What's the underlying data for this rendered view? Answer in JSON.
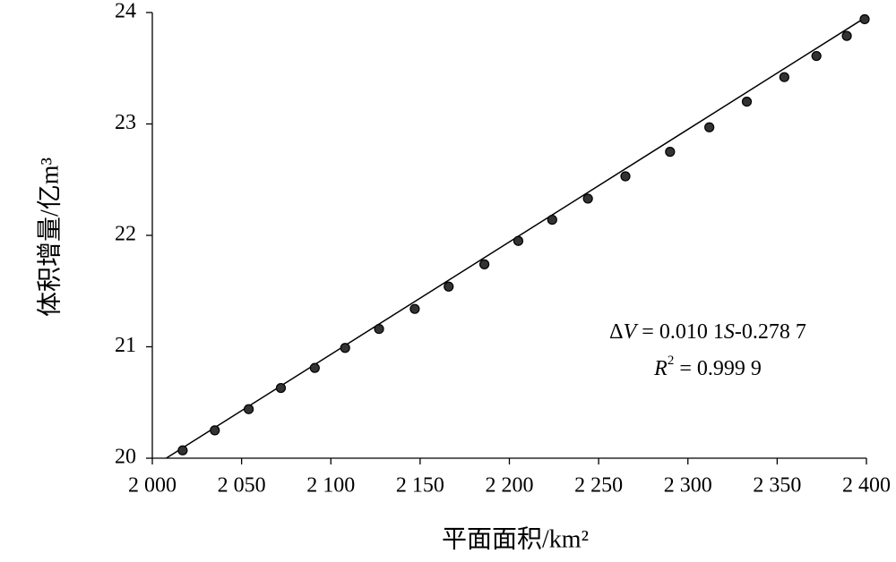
{
  "chart_data": {
    "type": "scatter",
    "x_label": "平面面积/km²",
    "y_label": "体积增量/亿m³",
    "equation": [
      "Δ",
      "V",
      " = 0.010 1",
      "S",
      "-0.278 7"
    ],
    "r_squared": [
      "R",
      "2",
      " = 0.999 9"
    ],
    "fit": {
      "slope": 0.0101,
      "intercept": -0.2787
    },
    "color": "#333333",
    "x": [
      2017,
      2035,
      2054,
      2072,
      2091,
      2108,
      2127,
      2147,
      2166,
      2186,
      2205,
      2224,
      2244,
      2265,
      2290,
      2312,
      2333,
      2354,
      2372,
      2389,
      2399
    ],
    "values": [
      20.07,
      20.25,
      20.44,
      20.63,
      20.81,
      20.99,
      21.16,
      21.34,
      21.54,
      21.74,
      21.95,
      22.14,
      22.33,
      22.53,
      22.75,
      22.97,
      23.2,
      23.42,
      23.61,
      23.79,
      23.94
    ],
    "xlim": [
      2000,
      2400
    ],
    "ylim": [
      20,
      24
    ],
    "xticks": [
      {
        "value": 2000,
        "label": "2 000"
      },
      {
        "value": 2050,
        "label": "2 050"
      },
      {
        "value": 2100,
        "label": "2 100"
      },
      {
        "value": 2150,
        "label": "2 150"
      },
      {
        "value": 2200,
        "label": "2 200"
      },
      {
        "value": 2250,
        "label": "2 250"
      },
      {
        "value": 2300,
        "label": "2 300"
      },
      {
        "value": 2350,
        "label": "2 350"
      },
      {
        "value": 2400,
        "label": "2 400"
      }
    ],
    "yticks": [
      20,
      21,
      22,
      23,
      24
    ]
  }
}
